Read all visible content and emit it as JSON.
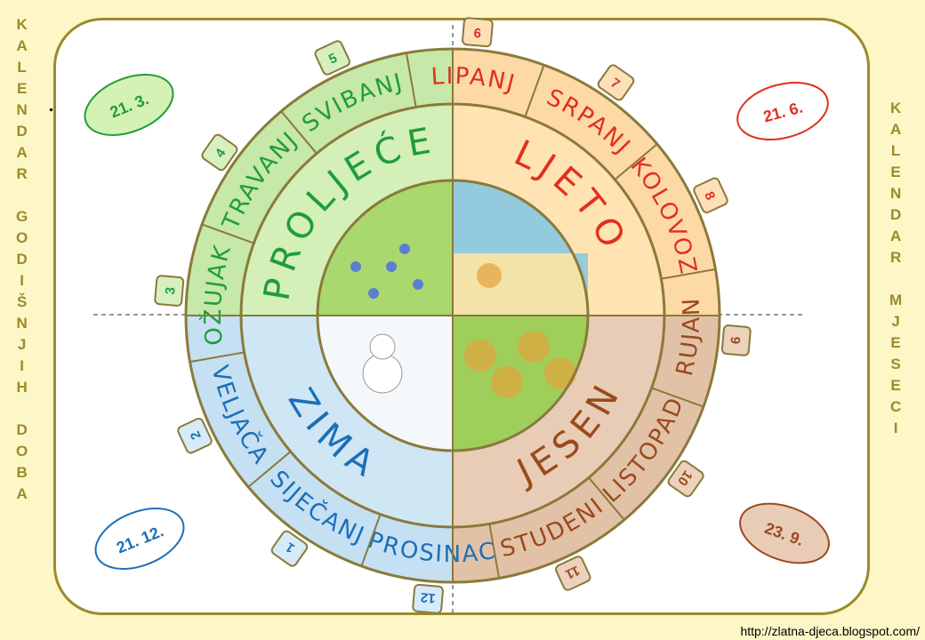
{
  "side_left": [
    "K",
    "A",
    "L",
    "E",
    "N",
    "D",
    "A",
    "R",
    "",
    "G",
    "O",
    "D",
    "I",
    "Š",
    "N",
    "J",
    "I",
    "H",
    "",
    "D",
    "O",
    "B",
    "A"
  ],
  "side_right": [
    "K",
    "A",
    "L",
    "E",
    "N",
    "D",
    "A",
    "R",
    "",
    "M",
    "J",
    "E",
    "S",
    "E",
    "C",
    "I"
  ],
  "seasons": [
    {
      "key": "spring",
      "name": "PROLJEĆE",
      "color": "#1f9d3a",
      "fill": "#d4efb8",
      "outer": "#c6e8a8",
      "badge": "#d8f0c0"
    },
    {
      "key": "summer",
      "name": "LJETO",
      "color": "#e0301e",
      "fill": "#ffe3b3",
      "outer": "#fdd9a6",
      "badge": "#fde0b8"
    },
    {
      "key": "autumn",
      "name": "JESEN",
      "color": "#9a4a1d",
      "fill": "#e9ccb5",
      "outer": "#e2c2a7",
      "badge": "#ecd2bd"
    },
    {
      "key": "winter",
      "name": "ZIMA",
      "color": "#1b6fb8",
      "fill": "#cfe6f5",
      "outer": "#c4e0f2",
      "badge": "#d6ebf7"
    }
  ],
  "months": [
    {
      "name": "LIPANJ",
      "num": "6",
      "season": "summer"
    },
    {
      "name": "SRPANJ",
      "num": "7",
      "season": "summer"
    },
    {
      "name": "KOLOVOZ",
      "num": "8",
      "season": "summer"
    },
    {
      "name": "RUJAN",
      "num": "9",
      "season": "autumn"
    },
    {
      "name": "LISTOPAD",
      "num": "10",
      "season": "autumn"
    },
    {
      "name": "STUDENI",
      "num": "11",
      "season": "autumn"
    },
    {
      "name": "PROSINAC",
      "num": "12",
      "season": "winter"
    },
    {
      "name": "SIJEČANJ",
      "num": "1",
      "season": "winter"
    },
    {
      "name": "VELJAČA",
      "num": "2",
      "season": "winter"
    },
    {
      "name": "OŽUJAK",
      "num": "3",
      "season": "spring"
    },
    {
      "name": "TRAVANJ",
      "num": "4",
      "season": "spring"
    },
    {
      "name": "SVIBANJ",
      "num": "5",
      "season": "spring"
    }
  ],
  "dates": [
    {
      "text": "21. 3.",
      "color": "#1f9d3a",
      "fill": "#d4f2b4"
    },
    {
      "text": "21. 6.",
      "color": "#e0301e",
      "fill": "#ffffff"
    },
    {
      "text": "23. 9.",
      "color": "#9a4a1d",
      "fill": "#e9ccb5"
    },
    {
      "text": "21. 12.",
      "color": "#1b6fb8",
      "fill": "#ffffff"
    }
  ],
  "credit": "http://zlatna-djeca.blogspot.com/"
}
